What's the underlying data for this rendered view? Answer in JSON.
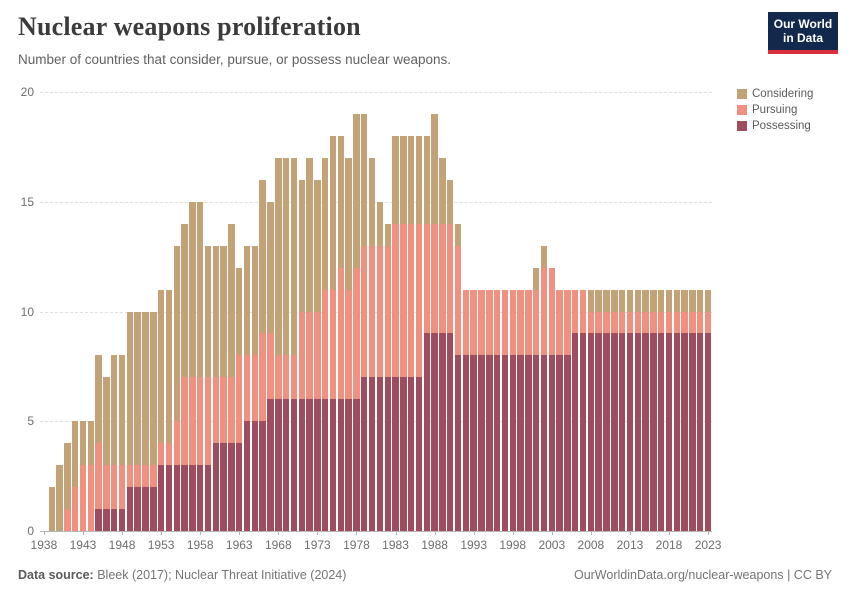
{
  "header": {
    "title": "Nuclear weapons proliferation",
    "subtitle": "Number of countries that consider, pursue, or possess nuclear weapons."
  },
  "logo": {
    "line1": "Our World",
    "line2": "in Data",
    "bg_color": "#12294d",
    "accent_color": "#dc2e41"
  },
  "legend": {
    "items": [
      {
        "label": "Considering",
        "color": "#c3a278"
      },
      {
        "label": "Pursuing",
        "color": "#f09080"
      },
      {
        "label": "Possessing",
        "color": "#9e4d5e"
      }
    ]
  },
  "chart_data": {
    "type": "bar",
    "stacked": true,
    "title": "Nuclear weapons proliferation",
    "xlabel": "",
    "ylabel": "",
    "x_start": 1938,
    "x_end": 2023,
    "xtick_years": [
      1938,
      1943,
      1948,
      1953,
      1958,
      1963,
      1968,
      1973,
      1978,
      1983,
      1988,
      1993,
      1998,
      2003,
      2008,
      2013,
      2018,
      2023
    ],
    "yticks": [
      0,
      5,
      10,
      15,
      20
    ],
    "ylim": [
      0,
      20
    ],
    "grid": "dashed-horizontal",
    "legend_position": "top-right",
    "series": [
      {
        "name": "Possessing",
        "color": "#9e4d5e",
        "values": [
          0,
          0,
          0,
          0,
          0,
          0,
          0,
          1,
          1,
          1,
          1,
          2,
          2,
          2,
          2,
          3,
          3,
          3,
          3,
          3,
          3,
          3,
          4,
          4,
          4,
          4,
          5,
          5,
          5,
          6,
          6,
          6,
          6,
          6,
          6,
          6,
          6,
          6,
          6,
          6,
          6,
          7,
          7,
          7,
          7,
          7,
          7,
          7,
          7,
          9,
          9,
          9,
          9,
          8,
          8,
          8,
          8,
          8,
          8,
          8,
          8,
          8,
          8,
          8,
          8,
          8,
          8,
          8,
          9,
          9,
          9,
          9,
          9,
          9,
          9,
          9,
          9,
          9,
          9,
          9,
          9,
          9,
          9,
          9,
          9,
          9
        ]
      },
      {
        "name": "Pursuing",
        "color": "#f09080",
        "values": [
          0,
          0,
          0,
          1,
          2,
          3,
          3,
          3,
          2,
          2,
          2,
          1,
          1,
          1,
          1,
          1,
          1,
          2,
          4,
          4,
          4,
          4,
          3,
          3,
          3,
          4,
          3,
          3,
          4,
          3,
          2,
          2,
          2,
          4,
          4,
          4,
          5,
          5,
          6,
          5,
          6,
          6,
          6,
          6,
          6,
          7,
          7,
          7,
          7,
          5,
          5,
          5,
          5,
          5,
          3,
          3,
          3,
          3,
          3,
          3,
          3,
          3,
          3,
          3,
          4,
          4,
          3,
          3,
          2,
          2,
          1,
          1,
          1,
          1,
          1,
          1,
          1,
          1,
          1,
          1,
          1,
          1,
          1,
          1,
          1,
          1
        ]
      },
      {
        "name": "Considering",
        "color": "#c3a278",
        "values": [
          0,
          2,
          3,
          3,
          3,
          2,
          2,
          4,
          4,
          5,
          5,
          7,
          7,
          7,
          7,
          7,
          7,
          8,
          7,
          8,
          8,
          6,
          6,
          6,
          7,
          4,
          5,
          5,
          7,
          6,
          9,
          9,
          9,
          6,
          7,
          6,
          6,
          7,
          6,
          6,
          7,
          6,
          4,
          2,
          1,
          4,
          4,
          4,
          4,
          4,
          5,
          3,
          2,
          1,
          0,
          0,
          0,
          0,
          0,
          0,
          0,
          0,
          0,
          1,
          1,
          0,
          0,
          0,
          0,
          0,
          1,
          1,
          1,
          1,
          1,
          1,
          1,
          1,
          1,
          1,
          1,
          1,
          1,
          1,
          1,
          1
        ]
      }
    ]
  },
  "footer": {
    "source_label": "Data source:",
    "source_value": "Bleek (2017); Nuclear Threat Initiative (2024)",
    "right_link": "OurWorldinData.org/nuclear-weapons",
    "separator": "|",
    "license": "CC BY"
  }
}
